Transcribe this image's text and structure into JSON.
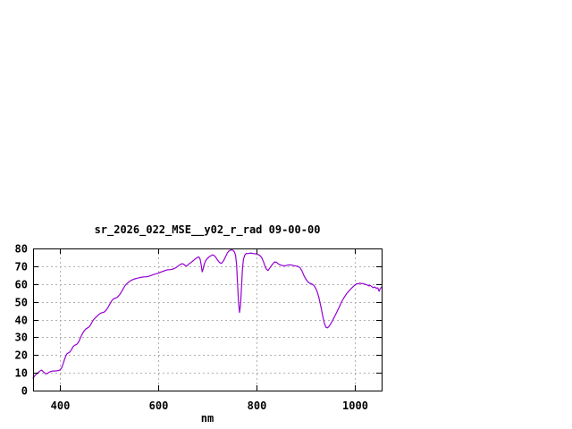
{
  "window": {
    "background": "#ffffff"
  },
  "chart_data": {
    "type": "line",
    "title": "sr_2026_022_MSE__y02_r_rad 09-00-00",
    "xlabel": "nm",
    "ylabel": "",
    "xlim": [
      345,
      1054
    ],
    "ylim": [
      0,
      80
    ],
    "xticks": [
      400,
      600,
      800,
      1000
    ],
    "yticks": [
      0,
      10,
      20,
      30,
      40,
      50,
      60,
      70,
      80
    ],
    "grid": true,
    "legend_position": "none",
    "colors": {
      "line": "#9400d3",
      "grid": "#b0b0b0",
      "axis": "#000000",
      "background": "#ffffff",
      "text": "#000000"
    },
    "series": [
      {
        "name": "sr_2026_022_MSE__y02_r_rad",
        "color": "#9400d3",
        "points": [
          [
            345,
            7.0
          ],
          [
            349,
            8.6
          ],
          [
            352,
            9.3
          ],
          [
            356,
            10.3
          ],
          [
            359,
            11.0
          ],
          [
            362,
            11.5
          ],
          [
            365,
            10.8
          ],
          [
            368,
            10.0
          ],
          [
            371,
            9.4
          ],
          [
            374,
            9.6
          ],
          [
            377,
            10.2
          ],
          [
            381,
            10.7
          ],
          [
            385,
            11.0
          ],
          [
            389,
            11.0
          ],
          [
            393,
            11.1
          ],
          [
            397,
            11.3
          ],
          [
            400,
            11.6
          ],
          [
            403,
            12.8
          ],
          [
            406,
            15.0
          ],
          [
            409,
            17.5
          ],
          [
            412,
            19.8
          ],
          [
            414,
            20.8
          ],
          [
            417,
            21.3
          ],
          [
            420,
            21.8
          ],
          [
            423,
            23.0
          ],
          [
            426,
            24.6
          ],
          [
            429,
            25.4
          ],
          [
            432,
            25.8
          ],
          [
            435,
            26.3
          ],
          [
            438,
            27.6
          ],
          [
            441,
            29.5
          ],
          [
            444,
            31.3
          ],
          [
            447,
            32.8
          ],
          [
            450,
            34.0
          ],
          [
            453,
            34.8
          ],
          [
            456,
            35.3
          ],
          [
            459,
            35.8
          ],
          [
            462,
            37.0
          ],
          [
            465,
            38.6
          ],
          [
            468,
            39.9
          ],
          [
            471,
            40.8
          ],
          [
            474,
            41.6
          ],
          [
            477,
            42.4
          ],
          [
            480,
            43.1
          ],
          [
            483,
            43.6
          ],
          [
            486,
            43.9
          ],
          [
            489,
            44.1
          ],
          [
            492,
            44.8
          ],
          [
            495,
            45.8
          ],
          [
            498,
            47.1
          ],
          [
            501,
            48.6
          ],
          [
            504,
            50.1
          ],
          [
            507,
            51.2
          ],
          [
            510,
            51.8
          ],
          [
            513,
            52.1
          ],
          [
            516,
            52.5
          ],
          [
            519,
            53.3
          ],
          [
            522,
            54.4
          ],
          [
            525,
            55.7
          ],
          [
            528,
            57.2
          ],
          [
            531,
            58.6
          ],
          [
            534,
            59.7
          ],
          [
            537,
            60.5
          ],
          [
            540,
            61.2
          ],
          [
            544,
            62.0
          ],
          [
            548,
            62.5
          ],
          [
            552,
            62.9
          ],
          [
            556,
            63.2
          ],
          [
            560,
            63.5
          ],
          [
            564,
            63.7
          ],
          [
            568,
            63.9
          ],
          [
            572,
            64.0
          ],
          [
            576,
            64.1
          ],
          [
            580,
            64.3
          ],
          [
            584,
            64.7
          ],
          [
            588,
            65.1
          ],
          [
            592,
            65.5
          ],
          [
            596,
            65.8
          ],
          [
            600,
            66.1
          ],
          [
            604,
            66.6
          ],
          [
            608,
            67.0
          ],
          [
            612,
            67.4
          ],
          [
            616,
            67.8
          ],
          [
            620,
            68.0
          ],
          [
            624,
            68.1
          ],
          [
            628,
            68.3
          ],
          [
            632,
            68.7
          ],
          [
            636,
            69.3
          ],
          [
            640,
            70.1
          ],
          [
            644,
            70.9
          ],
          [
            648,
            71.4
          ],
          [
            651,
            71.2
          ],
          [
            654,
            70.5
          ],
          [
            657,
            70.1
          ],
          [
            660,
            70.7
          ],
          [
            663,
            71.5
          ],
          [
            666,
            72.1
          ],
          [
            669,
            72.7
          ],
          [
            672,
            73.4
          ],
          [
            675,
            74.1
          ],
          [
            678,
            74.7
          ],
          [
            681,
            75.2
          ],
          [
            683,
            75.0
          ],
          [
            685,
            73.8
          ],
          [
            687,
            70.8
          ],
          [
            689,
            66.8
          ],
          [
            691,
            68.5
          ],
          [
            693,
            70.9
          ],
          [
            696,
            73.1
          ],
          [
            699,
            74.2
          ],
          [
            703,
            75.2
          ],
          [
            707,
            75.9
          ],
          [
            710,
            76.4
          ],
          [
            713,
            76.1
          ],
          [
            716,
            75.3
          ],
          [
            719,
            74.0
          ],
          [
            722,
            72.8
          ],
          [
            725,
            71.9
          ],
          [
            728,
            71.6
          ],
          [
            731,
            72.5
          ],
          [
            734,
            73.9
          ],
          [
            737,
            75.6
          ],
          [
            740,
            77.4
          ],
          [
            743,
            78.5
          ],
          [
            746,
            79.0
          ],
          [
            749,
            79.2
          ],
          [
            752,
            78.9
          ],
          [
            755,
            77.8
          ],
          [
            757,
            76.0
          ],
          [
            759,
            71.0
          ],
          [
            761,
            60.0
          ],
          [
            763,
            49.5
          ],
          [
            765,
            44.0
          ],
          [
            767,
            48.0
          ],
          [
            769,
            58.0
          ],
          [
            771,
            68.5
          ],
          [
            773,
            74.0
          ],
          [
            776,
            76.5
          ],
          [
            779,
            77.3
          ],
          [
            782,
            77.1
          ],
          [
            786,
            77.4
          ],
          [
            790,
            77.3
          ],
          [
            794,
            77.1
          ],
          [
            798,
            77.0
          ],
          [
            802,
            76.7
          ],
          [
            806,
            76.1
          ],
          [
            810,
            74.9
          ],
          [
            814,
            72.3
          ],
          [
            817,
            69.8
          ],
          [
            820,
            68.2
          ],
          [
            823,
            67.6
          ],
          [
            826,
            68.8
          ],
          [
            829,
            70.0
          ],
          [
            833,
            71.4
          ],
          [
            836,
            72.4
          ],
          [
            840,
            72.2
          ],
          [
            844,
            71.3
          ],
          [
            848,
            70.7
          ],
          [
            852,
            70.4
          ],
          [
            856,
            70.3
          ],
          [
            860,
            70.4
          ],
          [
            864,
            70.7
          ],
          [
            868,
            70.8
          ],
          [
            872,
            70.6
          ],
          [
            876,
            70.3
          ],
          [
            880,
            70.1
          ],
          [
            884,
            69.9
          ],
          [
            888,
            69.2
          ],
          [
            892,
            67.3
          ],
          [
            896,
            64.7
          ],
          [
            900,
            62.7
          ],
          [
            904,
            61.2
          ],
          [
            908,
            60.4
          ],
          [
            912,
            60.0
          ],
          [
            916,
            59.2
          ],
          [
            920,
            57.5
          ],
          [
            923,
            55.6
          ],
          [
            926,
            52.8
          ],
          [
            929,
            49.2
          ],
          [
            932,
            45.2
          ],
          [
            935,
            41.0
          ],
          [
            938,
            37.5
          ],
          [
            941,
            35.6
          ],
          [
            944,
            35.3
          ],
          [
            947,
            36.2
          ],
          [
            950,
            37.4
          ],
          [
            953,
            38.8
          ],
          [
            956,
            40.4
          ],
          [
            959,
            42.0
          ],
          [
            962,
            43.7
          ],
          [
            965,
            45.4
          ],
          [
            968,
            47.2
          ],
          [
            971,
            49.0
          ],
          [
            974,
            50.6
          ],
          [
            977,
            52.1
          ],
          [
            980,
            53.4
          ],
          [
            983,
            54.6
          ],
          [
            986,
            55.6
          ],
          [
            989,
            56.5
          ],
          [
            992,
            57.4
          ],
          [
            995,
            58.2
          ],
          [
            998,
            59.0
          ],
          [
            1001,
            59.7
          ],
          [
            1004,
            60.2
          ],
          [
            1007,
            60.1
          ],
          [
            1010,
            60.6
          ],
          [
            1013,
            60.2
          ],
          [
            1016,
            60.3
          ],
          [
            1019,
            59.9
          ],
          [
            1022,
            59.7
          ],
          [
            1025,
            59.4
          ],
          [
            1028,
            58.9
          ],
          [
            1031,
            59.2
          ],
          [
            1034,
            58.5
          ],
          [
            1037,
            57.9
          ],
          [
            1040,
            58.3
          ],
          [
            1043,
            57.6
          ],
          [
            1046,
            57.8
          ],
          [
            1049,
            55.9
          ],
          [
            1051,
            57.3
          ],
          [
            1054,
            58.3
          ]
        ]
      }
    ]
  }
}
